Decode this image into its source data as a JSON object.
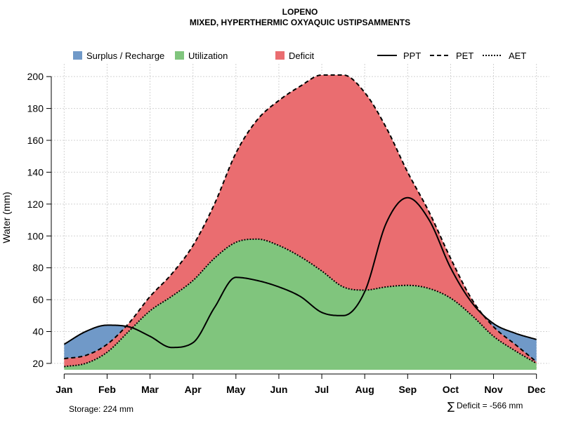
{
  "colors": {
    "surplus": "#7099C8",
    "utilization": "#80C57D",
    "deficit": "#EA6D70",
    "recharge": "#7099C8"
  },
  "legend": {
    "surplus": "Surplus / Recharge",
    "utilization": "Utilization",
    "deficit": "Deficit",
    "ppt": "PPT",
    "pet": "PET",
    "aet": "AET"
  },
  "footer": {
    "storage": "Storage: 224 mm",
    "deficit_symbol": "∑",
    "deficit": "Deficit = -566 mm"
  },
  "chart_data": {
    "type": "area",
    "title": "LOPENO",
    "subtitle": "MIXED, HYPERTHERMIC OXYAQUIC USTIPSAMMENTS",
    "xlabel": "",
    "ylabel": "Water (mm)",
    "ylim": [
      16,
      208
    ],
    "yticks": [
      20,
      40,
      60,
      80,
      100,
      120,
      140,
      160,
      180,
      200
    ],
    "categories": [
      "Jan",
      "Feb",
      "Mar",
      "Apr",
      "May",
      "Jun",
      "Jul",
      "Aug",
      "Sep",
      "Oct",
      "Nov",
      "Dec"
    ],
    "x": [
      1,
      1.5,
      2,
      2.5,
      3,
      3.5,
      4,
      4.5,
      5,
      5.5,
      6,
      6.5,
      7,
      7.5,
      8,
      8.5,
      9,
      9.5,
      10,
      10.5,
      11,
      11.5,
      12
    ],
    "series": [
      {
        "name": "PPT",
        "values": [
          32,
          40,
          44,
          43,
          37,
          30,
          33,
          55,
          74,
          72,
          68,
          62,
          52,
          50,
          65,
          108,
          124,
          110,
          80,
          58,
          45,
          39,
          35
        ]
      },
      {
        "name": "PET",
        "values": [
          23,
          25,
          32,
          45,
          62,
          76,
          94,
          120,
          152,
          173,
          185,
          194,
          201,
          201,
          190,
          168,
          140,
          115,
          86,
          60,
          43,
          32,
          21
        ]
      },
      {
        "name": "AET",
        "values": [
          18,
          20,
          27,
          40,
          53,
          62,
          72,
          86,
          96,
          98,
          94,
          87,
          78,
          68,
          66,
          68,
          69,
          67,
          61,
          50,
          37,
          28,
          20
        ]
      }
    ],
    "legend_position": "top"
  }
}
